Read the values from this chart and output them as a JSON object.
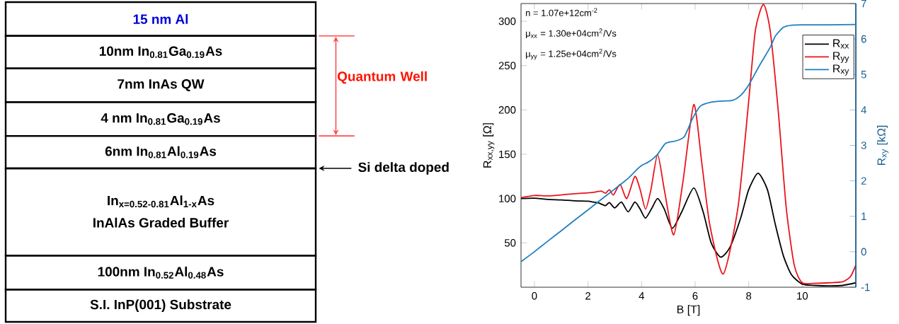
{
  "chart_data": [
    {
      "type": "other",
      "annotations": [
        "15 nm Al",
        "10nm In$_{0.81}$Ga$_{0.19}$As",
        "7nm InAs QW",
        "4 nm In$_{0.81}$Ga$_{0.19}$As",
        "6nm In$_{0.81}$Al$_{0.19}$As",
        "In$_{x=0.52-0.81}$Al$_{1-x}$As",
        "InAlAs Graded Buffer",
        "100nm In$_{0.52}$Al$_{0.48}$As",
        "S.I. InP(001) Substrate",
        "Quantum Well",
        "Si delta doped"
      ]
    },
    {
      "type": "line",
      "xlabel": "B [T]",
      "ylabel": "R$_{xx,yy}$ [Ω]",
      "y2label": "R$_{xy}$ [kΩ]",
      "annotations": [
        "n = 1.07e+12cm$^{-2}$",
        "μ$_{xx}$ = 1.30e+04cm$^{2}$/Vs",
        "μ$_{yy}$ = 1.25e+04cm$^{2}$/Vs"
      ],
      "xlim": [
        -0.5,
        12
      ],
      "ylim": [
        0,
        320
      ],
      "y2lim": [
        -1,
        7
      ],
      "xticks": [
        0,
        2,
        4,
        6,
        8,
        10
      ],
      "yticks": [
        50,
        100,
        150,
        200,
        250,
        300
      ],
      "y2ticks": [
        -1,
        0,
        1,
        2,
        3,
        4,
        5,
        6,
        7
      ],
      "legend": "top right",
      "marker": "none",
      "line_style": "solid",
      "series": [
        {
          "name": "R$_{xx}$",
          "color": "#000000",
          "x": [
            -0.5,
            0,
            0.5,
            1,
            1.5,
            2,
            2.2,
            2.4,
            2.65,
            2.8,
            3.0,
            3.25,
            3.5,
            3.75,
            3.95,
            4.15,
            4.4,
            4.6,
            4.85,
            5.15,
            5.5,
            5.95,
            6.3,
            6.6,
            6.95,
            7.3,
            7.7,
            8.0,
            8.35,
            8.7,
            9.0,
            9.3,
            9.6,
            10,
            10.5,
            11,
            11.5,
            12
          ],
          "values": [
            100,
            100.5,
            99,
            98.5,
            97.5,
            97,
            96,
            95,
            92,
            95.5,
            89.5,
            96,
            85,
            96,
            88,
            78,
            90,
            100,
            88,
            66.5,
            85,
            112,
            85,
            50,
            34,
            45,
            78,
            110,
            128.5,
            110,
            70,
            35,
            14,
            3.5,
            2,
            1.5,
            2,
            5
          ]
        },
        {
          "name": "R$_{yy}$",
          "color": "#e8141b",
          "x": [
            -0.5,
            0,
            0.5,
            1,
            1.5,
            2,
            2.3,
            2.5,
            2.65,
            2.8,
            2.95,
            3.2,
            3.45,
            3.75,
            3.95,
            4.15,
            4.35,
            4.6,
            4.85,
            5.2,
            5.55,
            5.95,
            6.25,
            6.55,
            7.05,
            7.6,
            8.0,
            8.25,
            8.55,
            8.8,
            9.1,
            9.4,
            9.7,
            10,
            10.5,
            11,
            11.5,
            11.8,
            12
          ],
          "values": [
            101,
            103.5,
            103,
            104,
            105.5,
            106.5,
            107.5,
            108.5,
            106,
            110,
            104,
            116,
            100,
            125,
            110,
            88,
            110,
            150,
            110,
            59,
            120,
            206,
            140,
            70,
            15,
            90,
            210,
            290,
            319,
            290,
            200,
            90,
            25,
            5,
            4.5,
            5,
            6,
            12,
            25
          ]
        },
        {
          "name": "R$_{xy}$",
          "color": "#1f7fc0",
          "axis": "y2",
          "x": [
            -0.5,
            0,
            0.5,
            1,
            1.5,
            2,
            2.5,
            3,
            3.5,
            3.8,
            4.0,
            4.3,
            4.6,
            4.9,
            5.3,
            5.6,
            5.9,
            6.2,
            6.6,
            7.0,
            7.4,
            7.7,
            8.0,
            8.4,
            8.8,
            9.0,
            9.3,
            9.6,
            10,
            11,
            12
          ],
          "values": [
            -0.28,
            0,
            0.3,
            0.59,
            0.89,
            1.18,
            1.48,
            1.77,
            2.07,
            2.3,
            2.43,
            2.55,
            2.75,
            3.06,
            3.13,
            3.25,
            3.75,
            4.11,
            4.22,
            4.25,
            4.27,
            4.41,
            4.7,
            5.25,
            5.76,
            6.09,
            6.33,
            6.39,
            6.4,
            6.4,
            6.41
          ]
        }
      ]
    }
  ]
}
